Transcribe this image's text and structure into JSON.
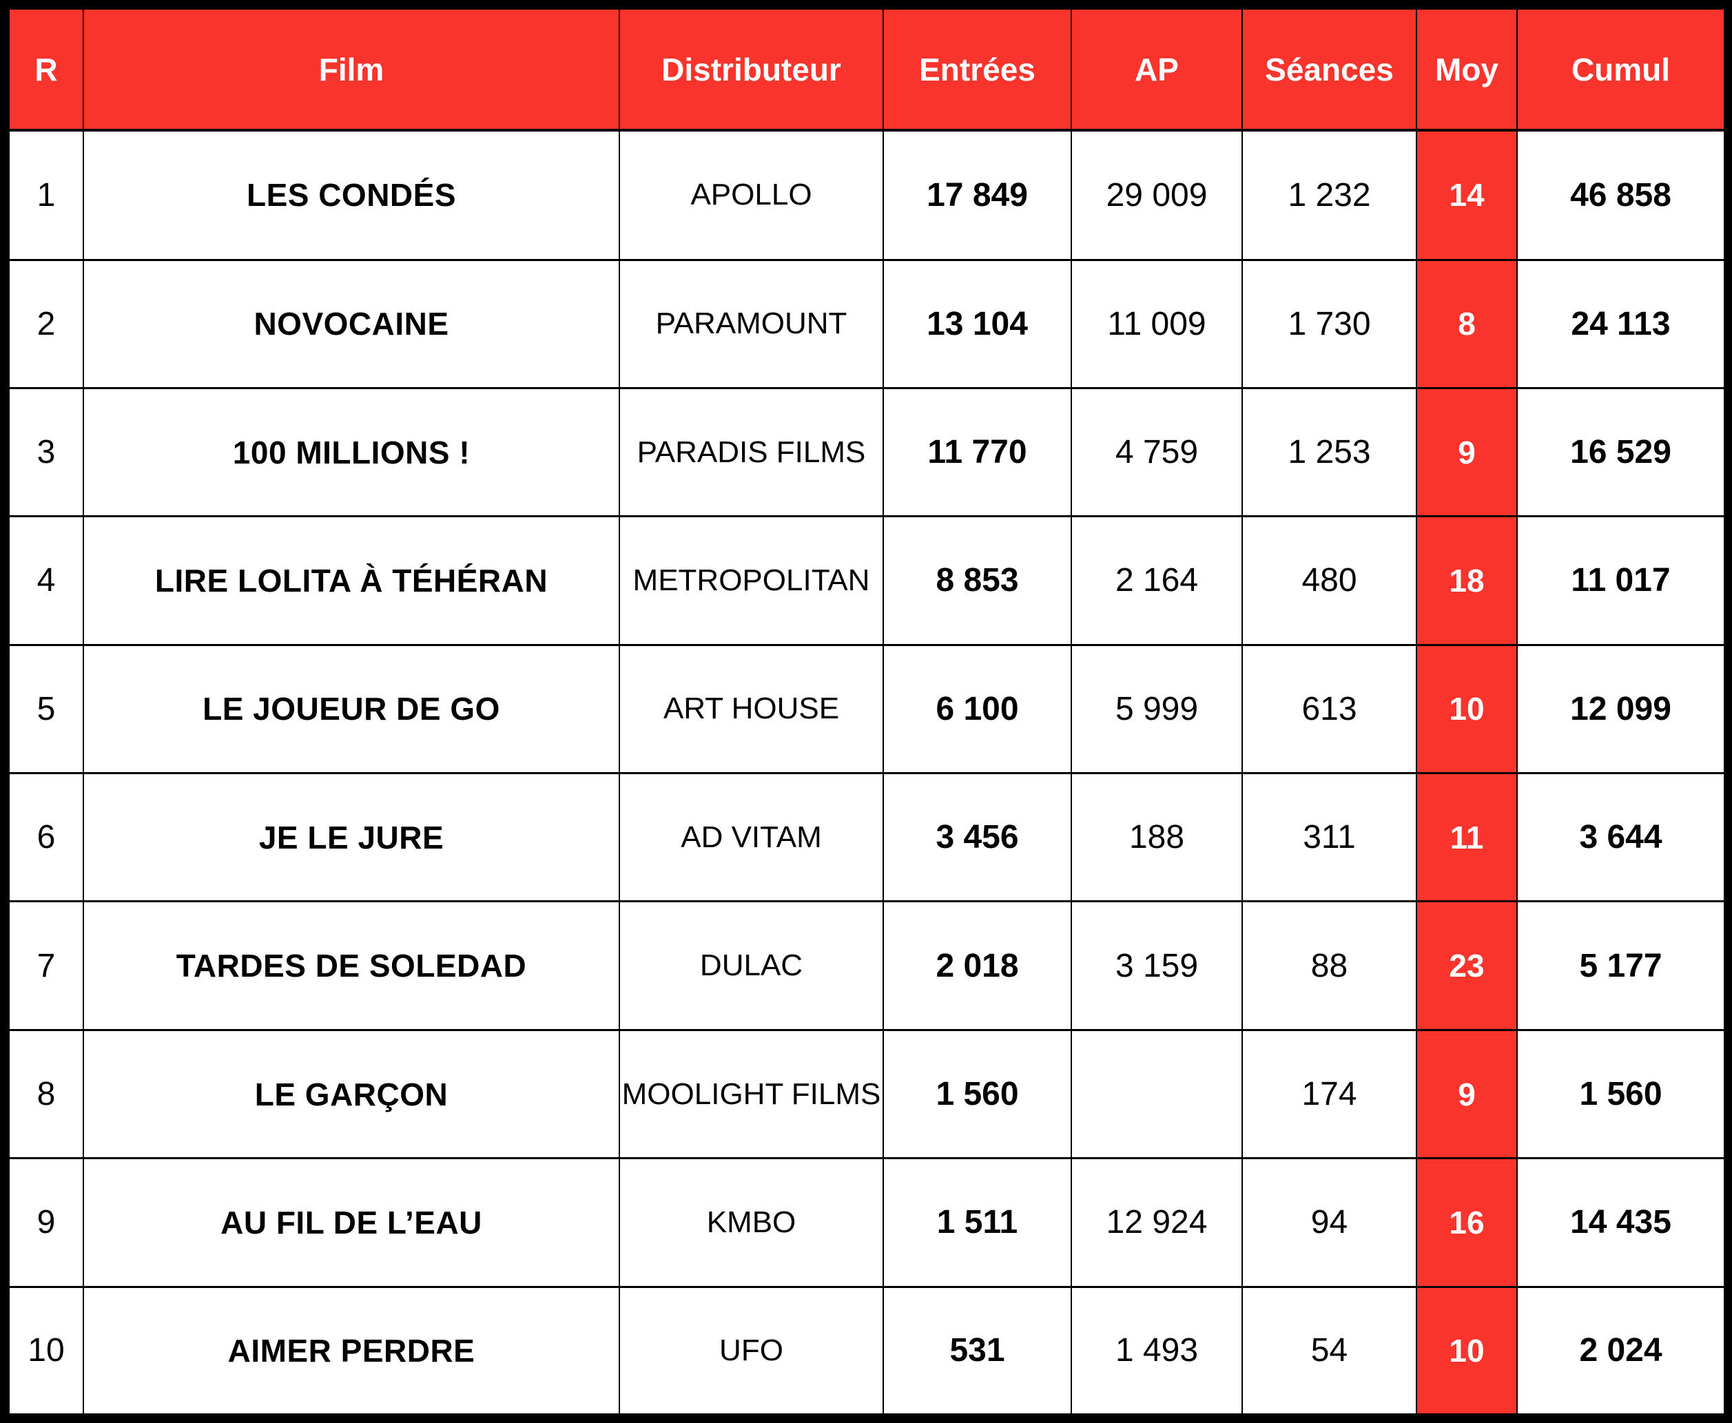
{
  "colors": {
    "accent_red": "#F8342D",
    "header_text": "#FFFFFF",
    "border": "#000000",
    "body_bg": "#FFFFFF",
    "body_text": "#000000"
  },
  "chart_data": {
    "type": "table",
    "title": "",
    "columns": [
      "R",
      "Film",
      "Distributeur",
      "Entrées",
      "AP",
      "Séances",
      "Moy",
      "Cumul"
    ],
    "column_keys": [
      "r",
      "film",
      "dist",
      "entrees",
      "ap",
      "seances",
      "moy",
      "cumul"
    ],
    "rows": [
      [
        "1",
        "LES CONDÉS",
        "APOLLO",
        "17 849",
        "29 009",
        "1 232",
        "14",
        "46 858"
      ],
      [
        "2",
        "NOVOCAINE",
        "PARAMOUNT",
        "13 104",
        "11 009",
        "1 730",
        "8",
        "24 113"
      ],
      [
        "3",
        "100 MILLIONS !",
        "PARADIS FILMS",
        "11 770",
        "4 759",
        "1 253",
        "9",
        "16 529"
      ],
      [
        "4",
        "LIRE LOLITA À TÉHÉRAN",
        "METROPOLITAN",
        "8 853",
        "2 164",
        "480",
        "18",
        "11 017"
      ],
      [
        "5",
        "LE JOUEUR DE GO",
        "ART HOUSE",
        "6 100",
        "5 999",
        "613",
        "10",
        "12 099"
      ],
      [
        "6",
        "JE LE JURE",
        "AD VITAM",
        "3 456",
        "188",
        "311",
        "11",
        "3 644"
      ],
      [
        "7",
        "TARDES DE SOLEDAD",
        "DULAC",
        "2 018",
        "3 159",
        "88",
        "23",
        "5 177"
      ],
      [
        "8",
        "LE GARÇON",
        "MOOLIGHT FILMS",
        "1 560",
        "",
        "174",
        "9",
        "1 560"
      ],
      [
        "9",
        "AU FIL DE L’EAU",
        "KMBO",
        "1 511",
        "12 924",
        "94",
        "16",
        "14 435"
      ],
      [
        "10",
        "AIMER PERDRE",
        "UFO",
        "531",
        "1 493",
        "54",
        "10",
        "2 024"
      ]
    ]
  }
}
